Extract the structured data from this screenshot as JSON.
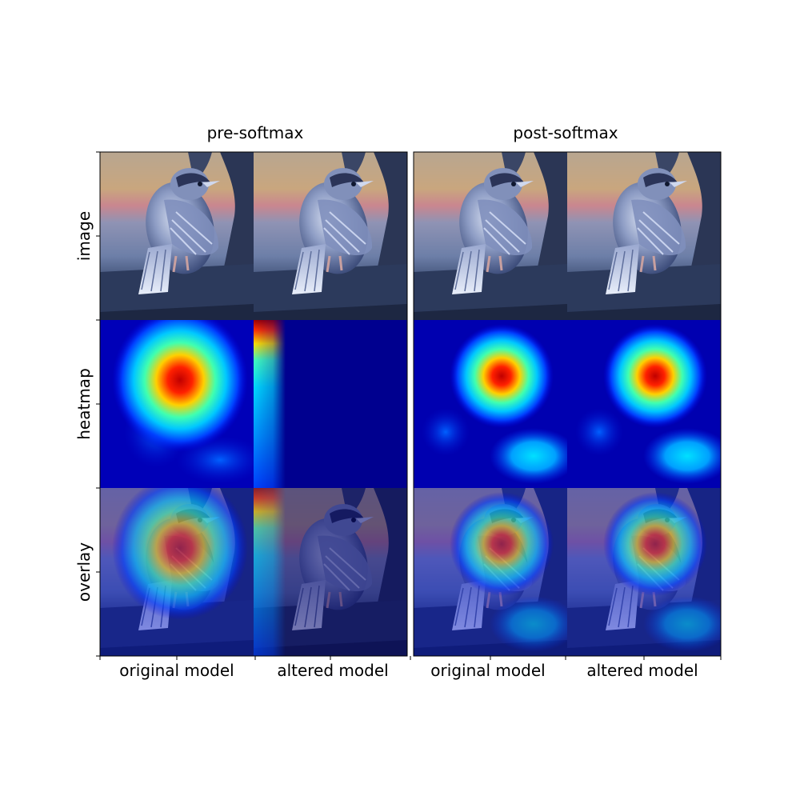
{
  "figure": {
    "panel_titles": [
      "pre-softmax",
      "post-softmax"
    ],
    "row_labels": [
      "image",
      "heatmap",
      "overlay"
    ],
    "column_labels": [
      "original model",
      "altered model",
      "original model",
      "altered model"
    ],
    "panels": [
      {
        "title": "pre-softmax",
        "columns": [
          {
            "label": "original model",
            "heatmap": "warm blob centered on bird chest, faint streaks lower right"
          },
          {
            "label": "altered model",
            "heatmap": "activation concentrated in narrow vertical strip at left edge, top hotspot"
          }
        ]
      },
      {
        "title": "post-softmax",
        "columns": [
          {
            "label": "original model",
            "heatmap": "warm blob on bird chest, cyan patch lower right"
          },
          {
            "label": "altered model",
            "heatmap": "warm blob on bird chest, cyan patch lower right"
          }
        ]
      }
    ],
    "colormap": "jet",
    "colors": {
      "jet_dark_blue": "#00008f",
      "jet_blue": "#0000ff",
      "jet_cyan": "#00ffff",
      "jet_yellow": "#ffff00",
      "jet_red": "#ff0000",
      "jet_dark_red": "#800000"
    }
  }
}
